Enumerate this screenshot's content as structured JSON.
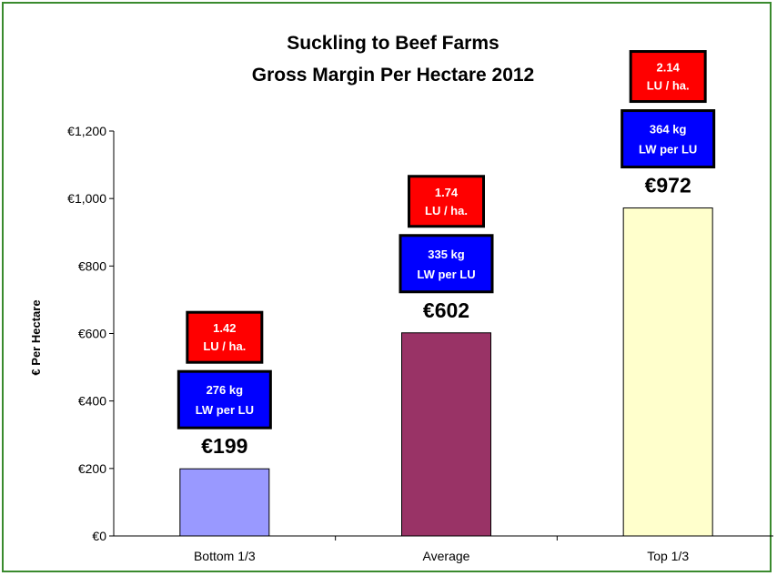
{
  "chart_data": {
    "type": "bar",
    "title": [
      "Suckling to Beef Farms",
      "Gross Margin Per Hectare 2012"
    ],
    "ylabel": "€ Per Hectare",
    "xlabel": "",
    "ylim": [
      0,
      1200
    ],
    "yticks": [
      0,
      200,
      400,
      600,
      800,
      1000,
      1200
    ],
    "ytick_labels": [
      "€0",
      "€200",
      "€400",
      "€600",
      "€800",
      "€1,000",
      "€1,200"
    ],
    "categories": [
      "Bottom 1/3",
      "Average",
      "Top 1/3"
    ],
    "values": [
      199,
      602,
      972
    ],
    "value_labels": [
      "€199",
      "€602",
      "€972"
    ],
    "bar_colors": [
      "#9999ff",
      "#993366",
      "#ffffcc"
    ],
    "stocking_rate_labels": [
      [
        "1.42",
        "LU / ha."
      ],
      [
        "1.74",
        "LU / ha."
      ],
      [
        "2.14",
        "LU / ha."
      ]
    ],
    "liveweight_labels": [
      [
        "276 kg",
        "LW per LU"
      ],
      [
        "335 kg",
        "LW per LU"
      ],
      [
        "364 kg",
        "LW per LU"
      ]
    ],
    "stocking_rate_color": "#ff0000",
    "liveweight_color": "#0000ff",
    "grid": false,
    "legend": "none"
  }
}
